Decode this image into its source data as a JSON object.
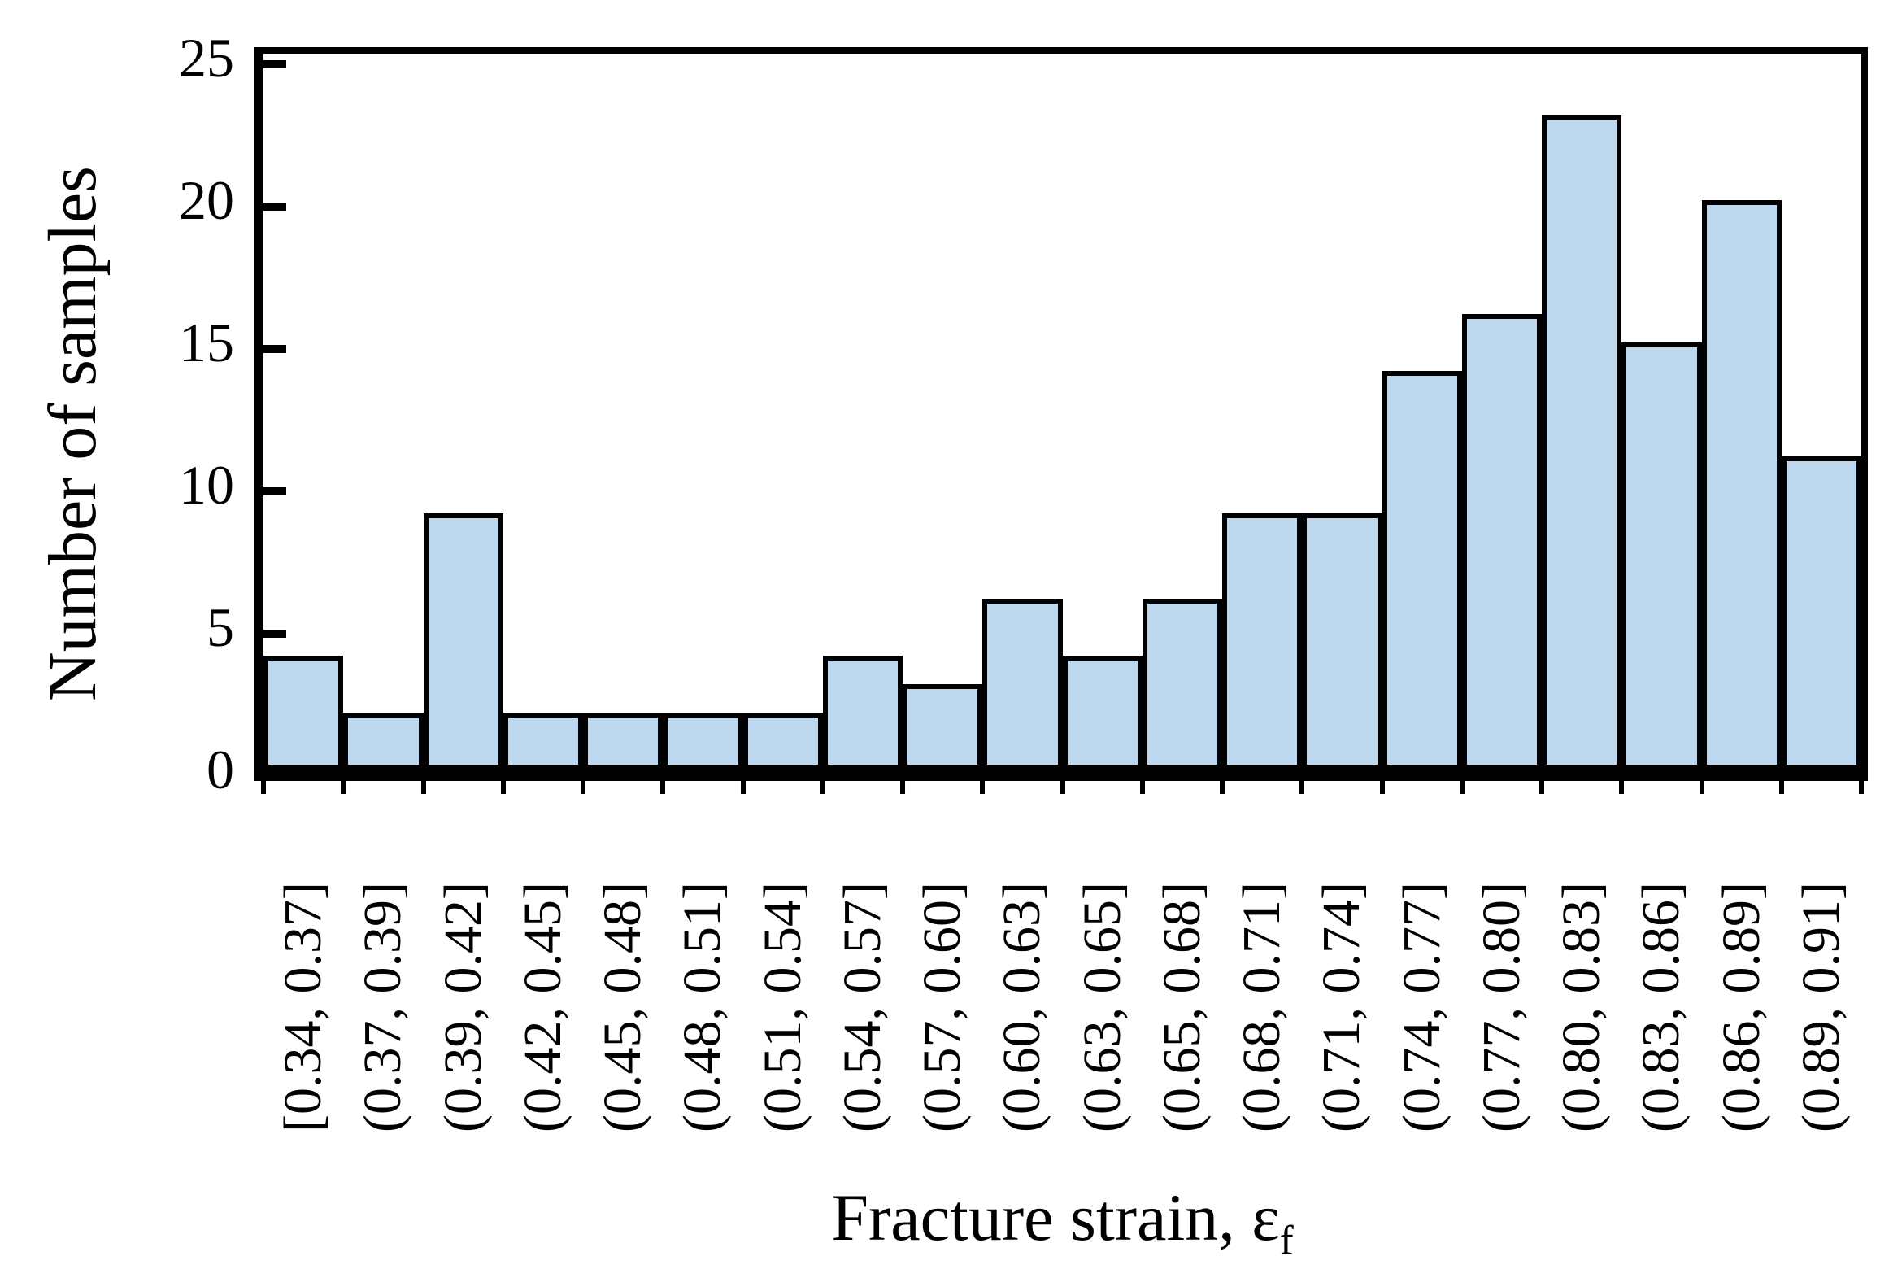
{
  "chart_data": {
    "type": "bar",
    "title": "",
    "xlabel": "Fracture strain, ε",
    "xlabel_subscript": "f",
    "ylabel": "Number of samples",
    "categories": [
      "[0.34, 0.37]",
      "(0.37, 0.39]",
      "(0.39, 0.42]",
      "(0.42, 0.45]",
      "(0.45, 0.48]",
      "(0.48, 0.51]",
      "(0.51, 0.54]",
      "(0.54, 0.57]",
      "(0.57, 0.60]",
      "(0.60, 0.63]",
      "(0.63, 0.65]",
      "(0.65, 0.68]",
      "(0.68, 0.71]",
      "(0.71, 0.74]",
      "(0.74, 0.77]",
      "(0.77, 0.80]",
      "(0.80, 0.83]",
      "(0.83, 0.86]",
      "(0.86, 0.89]",
      "(0.89, 0.91]"
    ],
    "values": [
      4,
      2,
      9,
      2,
      2,
      2,
      2,
      4,
      3,
      6,
      4,
      6,
      9,
      9,
      14,
      16,
      23,
      15,
      20,
      11
    ],
    "yticks": [
      0,
      5,
      10,
      15,
      20,
      25
    ],
    "ytick_labels": [
      "0",
      "5",
      "10",
      "15",
      "20",
      "25"
    ],
    "ylim": [
      0,
      25
    ],
    "grid": false,
    "legend": null,
    "bar_fill": "#BDD7EE",
    "bar_border": "#000000",
    "axis_color": "#000000",
    "background": "#FFFFFF"
  }
}
